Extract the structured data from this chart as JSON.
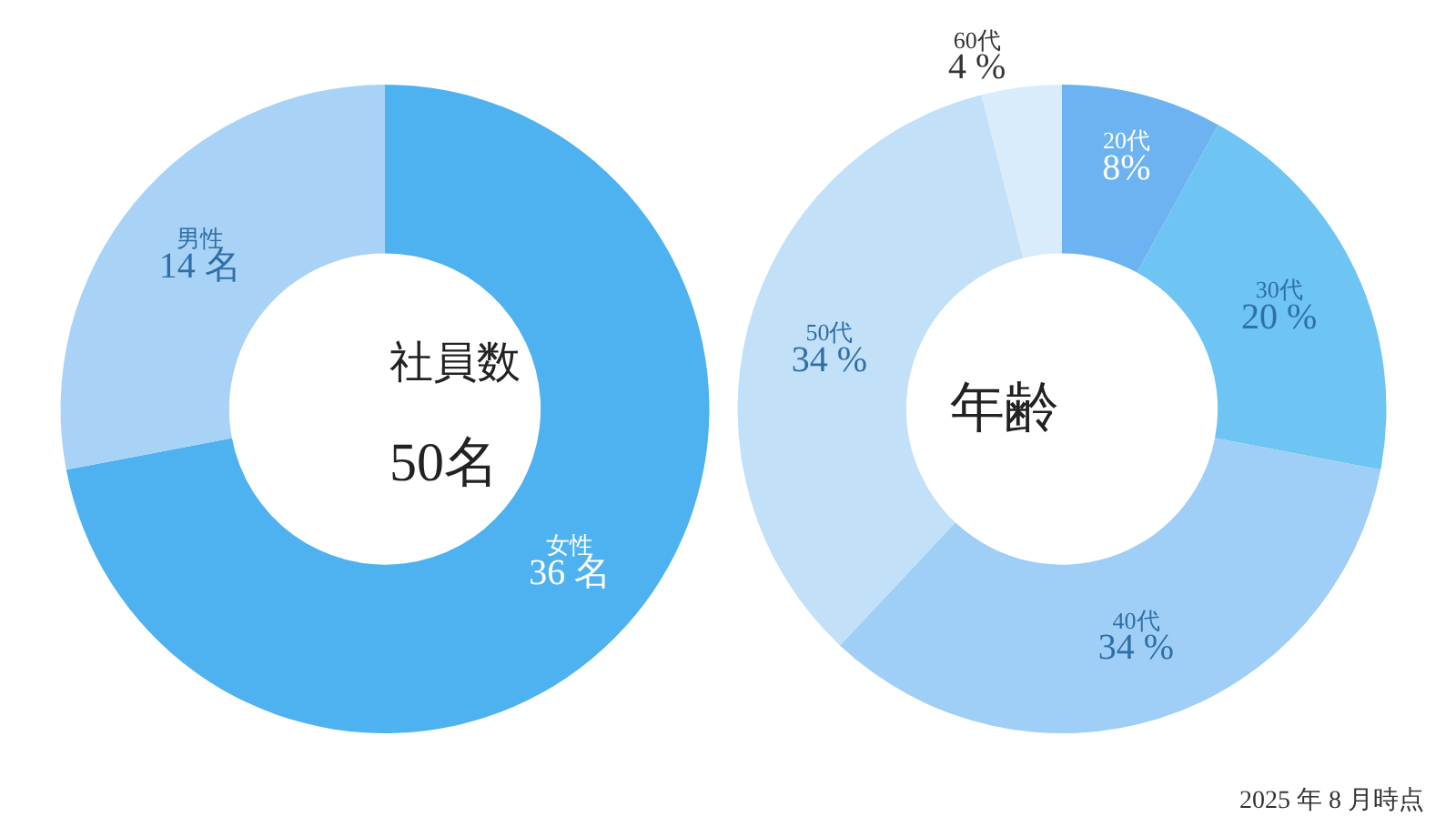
{
  "chart_data": [
    {
      "type": "donut",
      "categories": [
        "女性",
        "男性"
      ],
      "values": [
        36,
        14
      ],
      "value_labels": [
        "36 名",
        "14 名"
      ],
      "colors": [
        "#4fb2f0",
        "#a9d3f6"
      ],
      "annotations": [
        "社員数",
        "50名"
      ]
    },
    {
      "type": "donut",
      "categories": [
        "20代",
        "30代",
        "40代",
        "50代",
        "60代"
      ],
      "values": [
        8,
        20,
        34,
        34,
        4
      ],
      "value_labels": [
        "8%",
        "20 %",
        "34 %",
        "34 %",
        "4 %"
      ],
      "colors": [
        "#6db3f2",
        "#6ec4f2",
        "#9fcff6",
        "#c2e0f8",
        "#d9ecfb"
      ],
      "annotations": [
        "年齢",
        "2025 年 8 月時点"
      ]
    }
  ]
}
